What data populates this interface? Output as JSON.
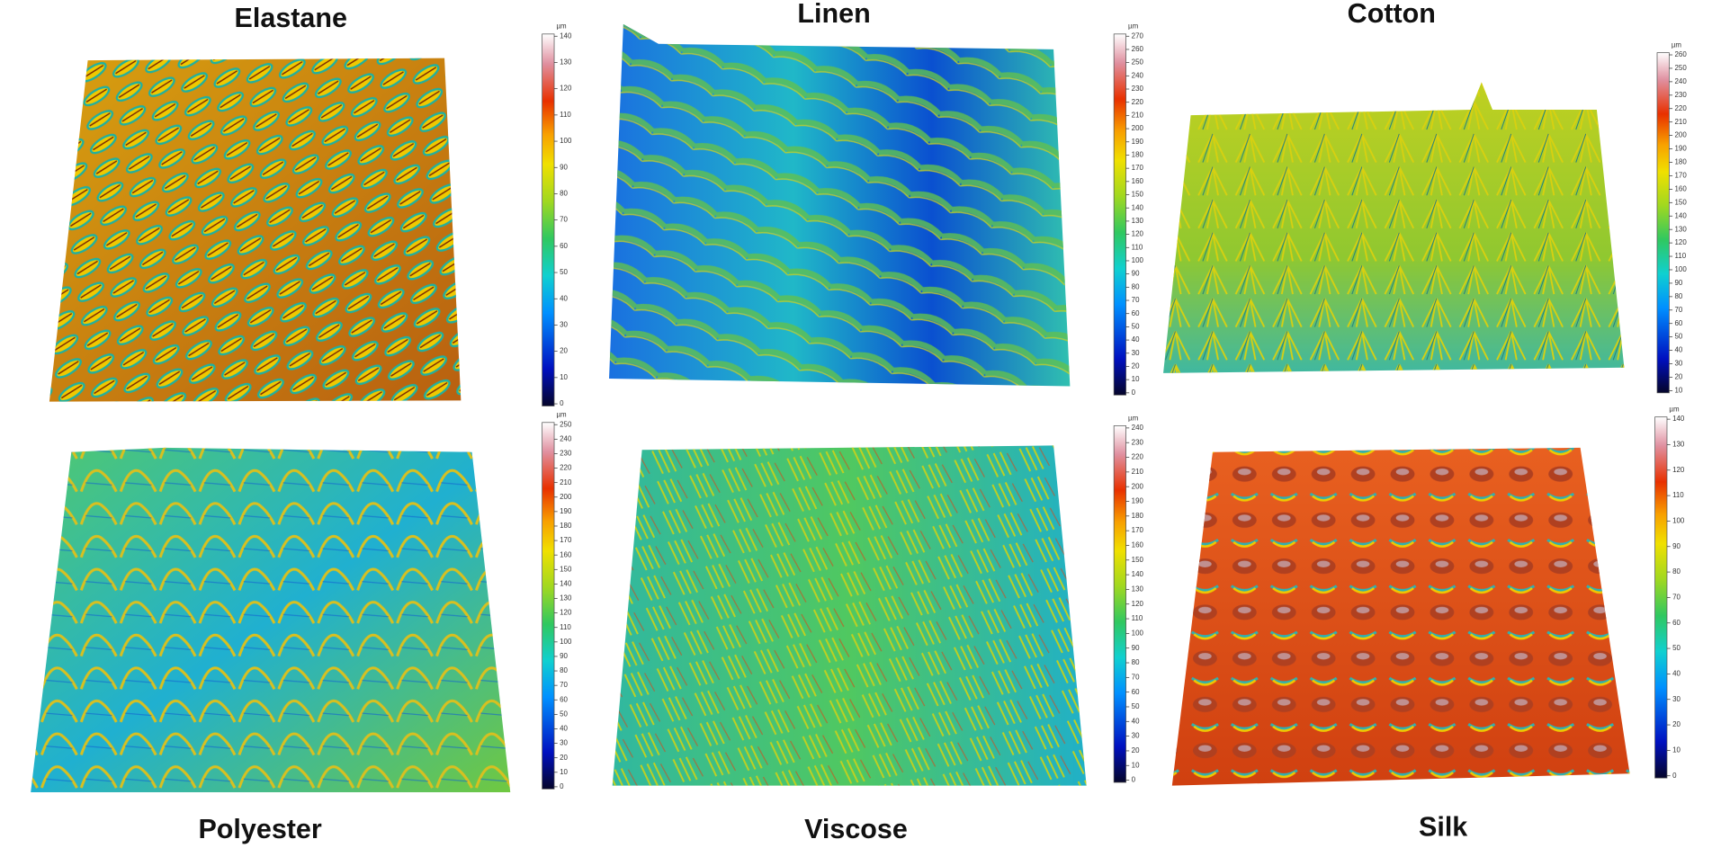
{
  "panels": [
    {
      "title": "Elastane",
      "unit": "µm",
      "colorbar": {
        "lim": [
          0,
          140
        ],
        "ticks": [
          0,
          10,
          20,
          30,
          40,
          50,
          60,
          70,
          80,
          90,
          100,
          110,
          120,
          130,
          140
        ]
      }
    },
    {
      "title": "Linen",
      "unit": "µm",
      "colorbar": {
        "lim": [
          0,
          270
        ],
        "ticks": [
          0,
          10,
          20,
          30,
          40,
          50,
          60,
          70,
          80,
          90,
          100,
          110,
          120,
          130,
          140,
          150,
          160,
          170,
          180,
          190,
          200,
          210,
          220,
          230,
          240,
          250,
          260,
          270
        ]
      }
    },
    {
      "title": "Cotton",
      "unit": "µm",
      "colorbar": {
        "lim": [
          10,
          260
        ],
        "ticks": [
          10,
          20,
          30,
          40,
          50,
          60,
          70,
          80,
          90,
          100,
          110,
          120,
          130,
          140,
          150,
          160,
          170,
          180,
          190,
          200,
          210,
          220,
          230,
          240,
          250,
          260
        ]
      }
    },
    {
      "title": "Polyester",
      "unit": "µm",
      "colorbar": {
        "lim": [
          0,
          250
        ],
        "ticks": [
          0,
          10,
          20,
          30,
          40,
          50,
          60,
          70,
          80,
          90,
          100,
          110,
          120,
          130,
          140,
          150,
          160,
          170,
          180,
          190,
          200,
          210,
          220,
          230,
          240,
          250
        ]
      }
    },
    {
      "title": "Viscose",
      "unit": "µm",
      "colorbar": {
        "lim": [
          0,
          240
        ],
        "ticks": [
          0,
          10,
          20,
          30,
          40,
          50,
          60,
          70,
          80,
          90,
          100,
          110,
          120,
          130,
          140,
          150,
          160,
          170,
          180,
          190,
          200,
          210,
          220,
          230,
          240
        ]
      }
    },
    {
      "title": "Silk",
      "unit": "µm",
      "colorbar": {
        "lim": [
          0,
          140
        ],
        "ticks": [
          0,
          10,
          20,
          30,
          40,
          50,
          60,
          70,
          80,
          90,
          100,
          110,
          120,
          130,
          140
        ]
      }
    }
  ]
}
